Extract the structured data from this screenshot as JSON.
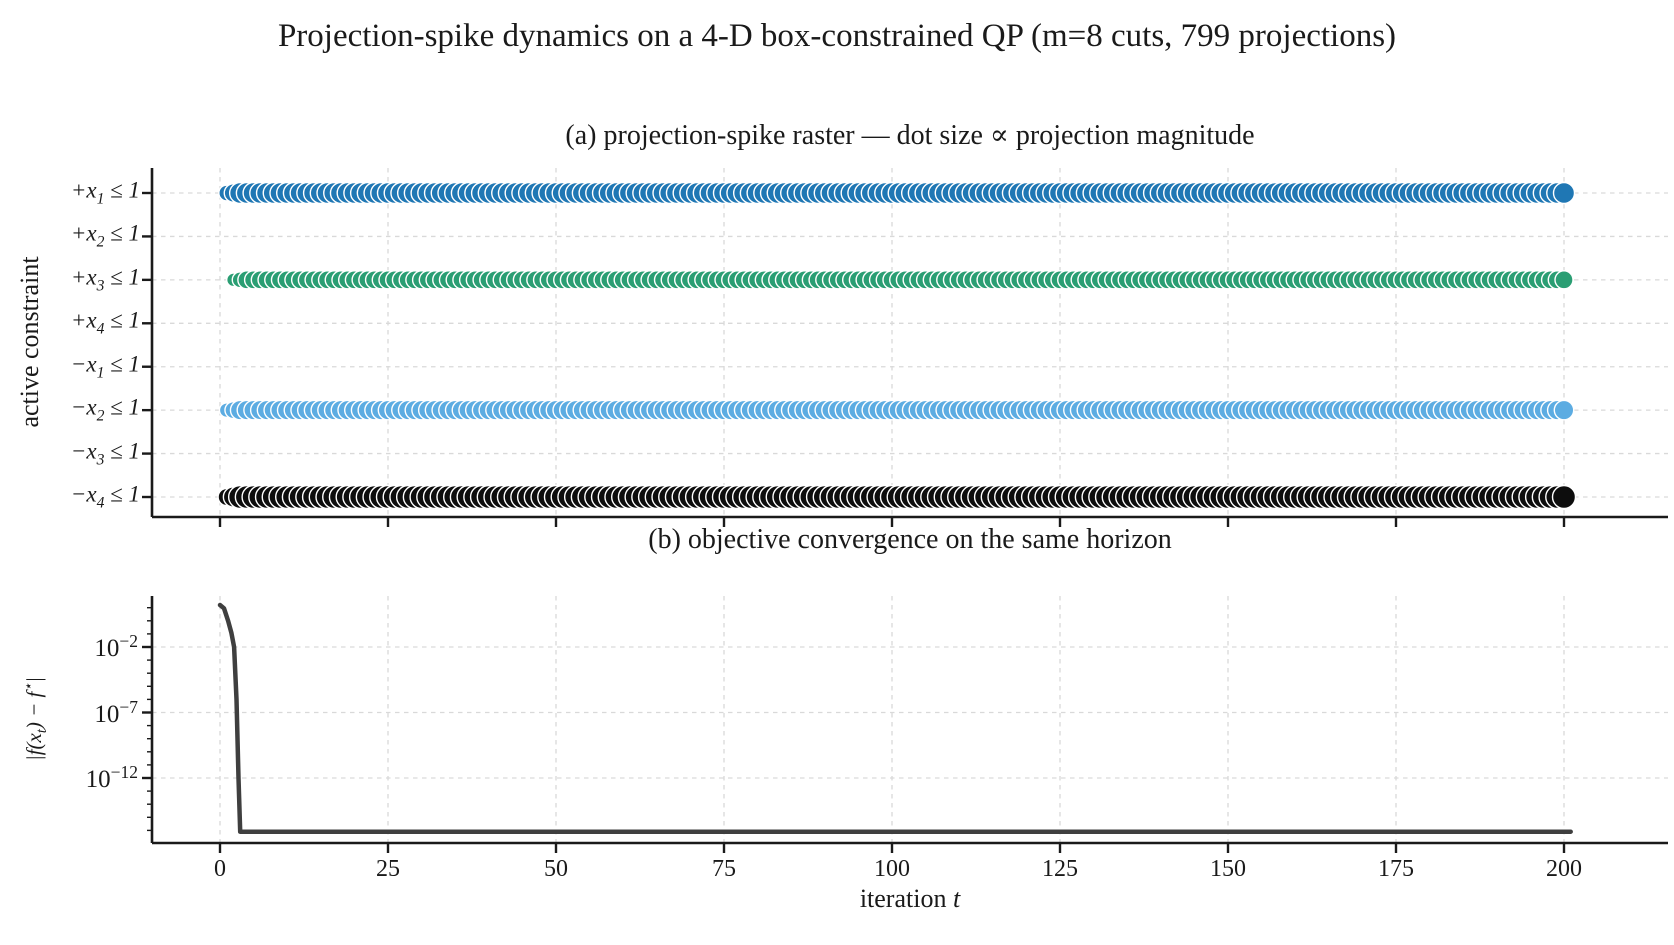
{
  "figure": {
    "title": "Projection-spike dynamics on a 4-D box-constrained QP (m=8 cuts, 799 projections)",
    "background": "#ffffff"
  },
  "panel_a": {
    "title": "(a) projection-spike raster — dot size ∝ projection magnitude",
    "ylabel": "active constraint",
    "categories": [
      {
        "prefix": "+x",
        "sub": "1",
        "suffix": " ≤ 1"
      },
      {
        "prefix": "+x",
        "sub": "2",
        "suffix": " ≤ 1"
      },
      {
        "prefix": "+x",
        "sub": "3",
        "suffix": " ≤ 1"
      },
      {
        "prefix": "+x",
        "sub": "4",
        "suffix": " ≤ 1"
      },
      {
        "prefix": "−x",
        "sub": "1",
        "suffix": " ≤ 1"
      },
      {
        "prefix": "−x",
        "sub": "2",
        "suffix": " ≤ 1"
      },
      {
        "prefix": "−x",
        "sub": "3",
        "suffix": " ≤ 1"
      },
      {
        "prefix": "−x",
        "sub": "4",
        "suffix": " ≤ 1"
      }
    ]
  },
  "panel_b": {
    "title": "(b) objective convergence on the same horizon",
    "ylabel_parts": {
      "pre": "|f(x",
      "sub": "t",
      "mid": ") − f",
      "sup": "⋆",
      "post": "|"
    },
    "xlabel": "iteration",
    "xlabel_var": "t",
    "ytick_base": "10",
    "ytick_exponents": [
      "−2",
      "−7",
      "−12"
    ]
  },
  "colors": {
    "spine": "#1a1a1a",
    "grid": "#d9d9d9",
    "dot_edge": "#ffffff",
    "convergence_line": "#3f3f3f"
  },
  "chart_data": [
    {
      "type": "scatter",
      "name": "projection-spike raster",
      "title": "(a) projection-spike raster — dot size ∝ projection magnitude",
      "xlabel": "iteration t",
      "ylabel": "active constraint",
      "x_ticks": [
        0,
        25,
        50,
        75,
        100,
        125,
        150,
        175,
        200
      ],
      "x_range": [
        0,
        200
      ],
      "categories": [
        "+x1 ≤ 1",
        "+x2 ≤ 1",
        "+x3 ≤ 1",
        "+x4 ≤ 1",
        "−x1 ≤ 1",
        "−x2 ≤ 1",
        "−x3 ≤ 1",
        "−x4 ≤ 1"
      ],
      "grid": true,
      "legend": false,
      "series": [
        {
          "constraint": "+x1 ≤ 1",
          "row_index": 0,
          "color": "#1f77b4",
          "t_start": 1,
          "t_end": 200,
          "dot_radius": 10.5
        },
        {
          "constraint": "+x3 ≤ 1",
          "row_index": 2,
          "color": "#2a9e73",
          "t_start": 2,
          "t_end": 200,
          "dot_radius": 9.0
        },
        {
          "constraint": "−x2 ≤ 1",
          "row_index": 5,
          "color": "#5cace2",
          "t_start": 1,
          "t_end": 200,
          "dot_radius": 9.7
        },
        {
          "constraint": "−x4 ≤ 1",
          "row_index": 7,
          "color": "#0d0d0d",
          "t_start": 1,
          "t_end": 200,
          "dot_radius": 11.5
        }
      ],
      "empty_rows": [
        "+x2 ≤ 1",
        "+x4 ≤ 1",
        "−x1 ≤ 1",
        "−x3 ≤ 1"
      ]
    },
    {
      "type": "line",
      "name": "objective convergence",
      "title": "(b) objective convergence on the same horizon",
      "xlabel": "iteration t",
      "ylabel": "|f(x_t) − f⋆|",
      "yscale": "log",
      "x_ticks": [
        0,
        25,
        50,
        75,
        100,
        125,
        150,
        175,
        200
      ],
      "y_tick_exponents": [
        -2,
        -7,
        -12
      ],
      "color": "#3f3f3f",
      "points": [
        [
          0,
          16
        ],
        [
          0.6,
          9
        ],
        [
          1.2,
          1.0
        ],
        [
          1.7,
          0.12
        ],
        [
          2.1,
          0.01
        ],
        [
          2.45,
          1e-06
        ],
        [
          2.75,
          1e-12
        ],
        [
          3.0,
          8e-17
        ],
        [
          201,
          8e-17
        ]
      ],
      "flat_value": 8e-17,
      "grid": true,
      "legend": false
    }
  ]
}
